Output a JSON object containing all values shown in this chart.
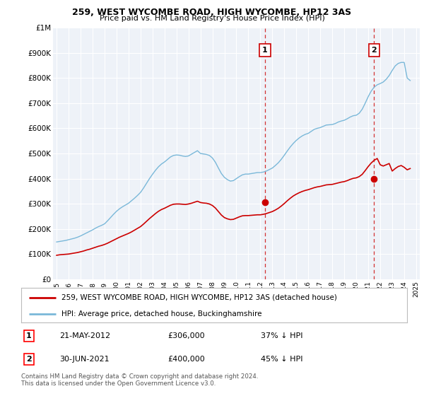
{
  "title": "259, WEST WYCOMBE ROAD, HIGH WYCOMBE, HP12 3AS",
  "subtitle": "Price paid vs. HM Land Registry's House Price Index (HPI)",
  "legend_line1": "259, WEST WYCOMBE ROAD, HIGH WYCOMBE, HP12 3AS (detached house)",
  "legend_line2": "HPI: Average price, detached house, Buckinghamshire",
  "footnote": "Contains HM Land Registry data © Crown copyright and database right 2024.\nThis data is licensed under the Open Government Licence v3.0.",
  "annotation1_date": "21-MAY-2012",
  "annotation1_price": "£306,000",
  "annotation1_pct": "37% ↓ HPI",
  "annotation2_date": "30-JUN-2021",
  "annotation2_price": "£400,000",
  "annotation2_pct": "45% ↓ HPI",
  "sale1_x": 2012.38,
  "sale1_y": 306000,
  "sale2_x": 2021.49,
  "sale2_y": 400000,
  "hpi_color": "#7ab8d9",
  "price_color": "#cc0000",
  "vline_color": "#cc0000",
  "background_color": "#eef2f8",
  "ylim": [
    0,
    1000000
  ],
  "xlim_left": 1994.7,
  "xlim_right": 2025.3,
  "yticks": [
    0,
    100000,
    200000,
    300000,
    400000,
    500000,
    600000,
    700000,
    800000,
    900000,
    1000000
  ],
  "ytick_labels": [
    "£0",
    "£100K",
    "£200K",
    "£300K",
    "£400K",
    "£500K",
    "£600K",
    "£700K",
    "£800K",
    "£900K",
    "£1M"
  ],
  "hpi_years": [
    1995.0,
    1995.25,
    1995.5,
    1995.75,
    1996.0,
    1996.25,
    1996.5,
    1996.75,
    1997.0,
    1997.25,
    1997.5,
    1997.75,
    1998.0,
    1998.25,
    1998.5,
    1998.75,
    1999.0,
    1999.25,
    1999.5,
    1999.75,
    2000.0,
    2000.25,
    2000.5,
    2000.75,
    2001.0,
    2001.25,
    2001.5,
    2001.75,
    2002.0,
    2002.25,
    2002.5,
    2002.75,
    2003.0,
    2003.25,
    2003.5,
    2003.75,
    2004.0,
    2004.25,
    2004.5,
    2004.75,
    2005.0,
    2005.25,
    2005.5,
    2005.75,
    2006.0,
    2006.25,
    2006.5,
    2006.75,
    2007.0,
    2007.25,
    2007.5,
    2007.75,
    2008.0,
    2008.25,
    2008.5,
    2008.75,
    2009.0,
    2009.25,
    2009.5,
    2009.75,
    2010.0,
    2010.25,
    2010.5,
    2010.75,
    2011.0,
    2011.25,
    2011.5,
    2011.75,
    2012.0,
    2012.25,
    2012.5,
    2012.75,
    2013.0,
    2013.25,
    2013.5,
    2013.75,
    2014.0,
    2014.25,
    2014.5,
    2014.75,
    2015.0,
    2015.25,
    2015.5,
    2015.75,
    2016.0,
    2016.25,
    2016.5,
    2016.75,
    2017.0,
    2017.25,
    2017.5,
    2017.75,
    2018.0,
    2018.25,
    2018.5,
    2018.75,
    2019.0,
    2019.25,
    2019.5,
    2019.75,
    2020.0,
    2020.25,
    2020.5,
    2020.75,
    2021.0,
    2021.25,
    2021.5,
    2021.75,
    2022.0,
    2022.25,
    2022.5,
    2022.75,
    2023.0,
    2023.25,
    2023.5,
    2023.75,
    2024.0,
    2024.25,
    2024.5
  ],
  "hpi_values": [
    148000,
    150000,
    152000,
    154000,
    157000,
    160000,
    163000,
    167000,
    172000,
    178000,
    184000,
    190000,
    196000,
    203000,
    209000,
    214000,
    220000,
    232000,
    245000,
    258000,
    270000,
    280000,
    288000,
    295000,
    302000,
    312000,
    322000,
    333000,
    345000,
    362000,
    381000,
    400000,
    417000,
    433000,
    447000,
    458000,
    466000,
    476000,
    486000,
    492000,
    494000,
    493000,
    490000,
    488000,
    490000,
    497000,
    504000,
    511000,
    500000,
    498000,
    496000,
    492000,
    482000,
    465000,
    442000,
    420000,
    405000,
    396000,
    390000,
    392000,
    400000,
    408000,
    415000,
    418000,
    418000,
    420000,
    422000,
    424000,
    424000,
    426000,
    430000,
    436000,
    442000,
    452000,
    463000,
    477000,
    493000,
    510000,
    526000,
    540000,
    552000,
    562000,
    570000,
    576000,
    580000,
    588000,
    596000,
    600000,
    603000,
    608000,
    613000,
    614000,
    615000,
    619000,
    625000,
    629000,
    632000,
    638000,
    645000,
    650000,
    652000,
    660000,
    676000,
    700000,
    726000,
    748000,
    764000,
    773000,
    778000,
    784000,
    795000,
    810000,
    830000,
    848000,
    858000,
    862000,
    862000,
    800000,
    790000
  ],
  "price_years": [
    1995.0,
    1995.25,
    1995.5,
    1995.75,
    1996.0,
    1996.25,
    1996.5,
    1996.75,
    1997.0,
    1997.25,
    1997.5,
    1997.75,
    1998.0,
    1998.25,
    1998.5,
    1998.75,
    1999.0,
    1999.25,
    1999.5,
    1999.75,
    2000.0,
    2000.25,
    2000.5,
    2000.75,
    2001.0,
    2001.25,
    2001.5,
    2001.75,
    2002.0,
    2002.25,
    2002.5,
    2002.75,
    2003.0,
    2003.25,
    2003.5,
    2003.75,
    2004.0,
    2004.25,
    2004.5,
    2004.75,
    2005.0,
    2005.25,
    2005.5,
    2005.75,
    2006.0,
    2006.25,
    2006.5,
    2006.75,
    2007.0,
    2007.25,
    2007.5,
    2007.75,
    2008.0,
    2008.25,
    2008.5,
    2008.75,
    2009.0,
    2009.25,
    2009.5,
    2009.75,
    2010.0,
    2010.25,
    2010.5,
    2010.75,
    2011.0,
    2011.25,
    2011.5,
    2011.75,
    2012.0,
    2012.25,
    2012.5,
    2012.75,
    2013.0,
    2013.25,
    2013.5,
    2013.75,
    2014.0,
    2014.25,
    2014.5,
    2014.75,
    2015.0,
    2015.25,
    2015.5,
    2015.75,
    2016.0,
    2016.25,
    2016.5,
    2016.75,
    2017.0,
    2017.25,
    2017.5,
    2017.75,
    2018.0,
    2018.25,
    2018.5,
    2018.75,
    2019.0,
    2019.25,
    2019.5,
    2019.75,
    2020.0,
    2020.25,
    2020.5,
    2020.75,
    2021.0,
    2021.25,
    2021.5,
    2021.75,
    2022.0,
    2022.25,
    2022.5,
    2022.75,
    2023.0,
    2023.25,
    2023.5,
    2023.75,
    2024.0,
    2024.25,
    2024.5
  ],
  "price_values": [
    95000,
    97000,
    98000,
    99000,
    100000,
    102000,
    104000,
    106000,
    109000,
    112000,
    116000,
    119000,
    123000,
    127000,
    131000,
    134000,
    138000,
    143000,
    149000,
    155000,
    161000,
    167000,
    172000,
    177000,
    182000,
    188000,
    195000,
    202000,
    209000,
    219000,
    230000,
    241000,
    251000,
    261000,
    270000,
    277000,
    282000,
    288000,
    294000,
    298000,
    299000,
    299000,
    298000,
    297000,
    299000,
    302000,
    306000,
    310000,
    305000,
    303000,
    302000,
    299000,
    293000,
    283000,
    269000,
    255000,
    245000,
    240000,
    237000,
    238000,
    243000,
    248000,
    252000,
    253000,
    253000,
    254000,
    255000,
    256000,
    256000,
    258000,
    261000,
    265000,
    269000,
    275000,
    282000,
    291000,
    301000,
    312000,
    322000,
    331000,
    338000,
    344000,
    349000,
    353000,
    356000,
    360000,
    364000,
    367000,
    369000,
    372000,
    375000,
    376000,
    377000,
    380000,
    383000,
    386000,
    388000,
    392000,
    397000,
    401000,
    403000,
    408000,
    417000,
    432000,
    448000,
    462000,
    473000,
    480000,
    455000,
    450000,
    455000,
    460000,
    430000,
    440000,
    448000,
    452000,
    445000,
    435000,
    440000
  ]
}
